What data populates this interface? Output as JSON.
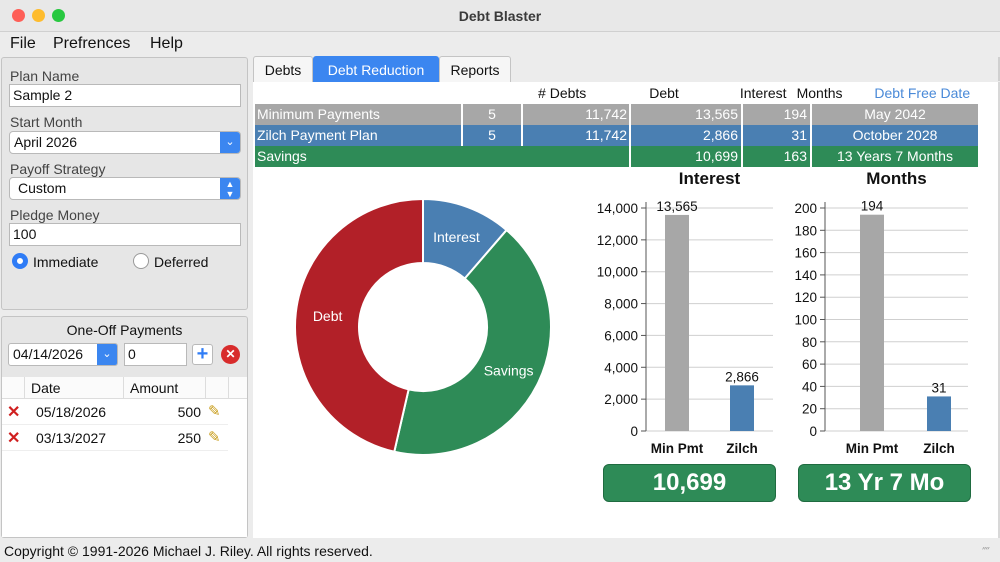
{
  "window": {
    "title": "Debt Blaster"
  },
  "menu": {
    "file": "File",
    "preferences": "Prefrences",
    "help": "Help"
  },
  "plan": {
    "plan_name_label": "Plan Name",
    "plan_name_value": "Sample 2",
    "start_month_label": "Start Month",
    "start_month_value": "April 2026",
    "payoff_strategy_label": "Payoff Strategy",
    "payoff_strategy_value": "Custom",
    "pledge_money_label": "Pledge Money",
    "pledge_money_value": "100",
    "immediate_label": "Immediate",
    "deferred_label": "Deferred",
    "timing_selected": "Immediate"
  },
  "one_off": {
    "title": "One-Off Payments",
    "date_value": "04/14/2026",
    "amount_value": "0",
    "columns": [
      "Date",
      "Amount"
    ],
    "rows": [
      {
        "date": "05/18/2026",
        "amount": "500"
      },
      {
        "date": "03/13/2027",
        "amount": "250"
      }
    ]
  },
  "tabs": [
    "Debts",
    "Debt Reduction",
    "Reports"
  ],
  "active_tab": "Debt Reduction",
  "summary": {
    "headers": [
      "# Debts",
      "Debt",
      "Interest",
      "Months",
      "Debt Free Date"
    ],
    "rows": [
      {
        "name": "Minimum Payments",
        "debts": "5",
        "debt": "11,742",
        "interest": "13,565",
        "months": "194",
        "date": "May 2042"
      },
      {
        "name": "Zilch Payment Plan",
        "debts": "5",
        "debt": "11,742",
        "interest": "2,866",
        "months": "31",
        "date": "October 2028"
      },
      {
        "name": "Savings",
        "interest": "10,699",
        "months": "163",
        "date": "13 Years 7 Months"
      }
    ]
  },
  "chart_data": [
    {
      "type": "pie",
      "categories": [
        "Interest",
        "Savings",
        "Debt"
      ],
      "values": [
        2866,
        10699,
        11742
      ],
      "colors": [
        "#4a7fb2",
        "#2e8b57",
        "#b22028"
      ]
    },
    {
      "type": "bar",
      "title": "Interest",
      "categories": [
        "Min Pmt",
        "Zilch"
      ],
      "values": [
        13565,
        2866
      ],
      "labels": [
        "13,565",
        "2,866"
      ],
      "ylim": [
        0,
        14000
      ],
      "yticks": [
        "0",
        "2,000",
        "4,000",
        "6,000",
        "8,000",
        "10,000",
        "12,000",
        "14,000"
      ],
      "colors": [
        "#a7a7a7",
        "#4a7fb2"
      ],
      "grid": true
    },
    {
      "type": "bar",
      "title": "Months",
      "categories": [
        "Min Pmt",
        "Zilch"
      ],
      "values": [
        194,
        31
      ],
      "labels": [
        "194",
        "31"
      ],
      "ylim": [
        0,
        200
      ],
      "yticks": [
        "0",
        "20",
        "40",
        "60",
        "80",
        "100",
        "120",
        "140",
        "160",
        "180",
        "200"
      ],
      "colors": [
        "#a7a7a7",
        "#4a7fb2"
      ],
      "grid": true
    }
  ],
  "totals": {
    "interest_saved": "10,699",
    "time_saved": "13 Yr 7 Mo"
  },
  "status": {
    "copyright": "Copyright © 1991-2026 Michael J. Riley. All rights reserved."
  },
  "colors": {
    "accent": "#3b86f0",
    "debt": "#b22028",
    "savings": "#2e8b57",
    "interest": "#4a7fb2",
    "minimum": "#a7a7a7",
    "debt_free_header": "#4a8ad8"
  }
}
